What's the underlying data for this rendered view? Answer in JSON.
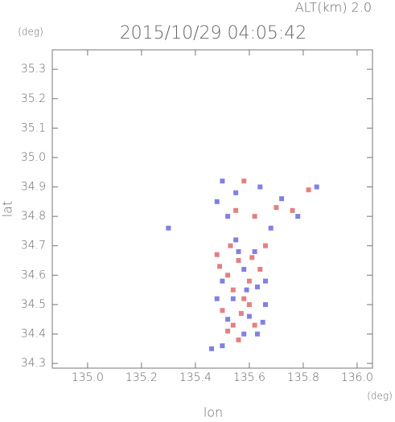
{
  "chart_data": {
    "type": "scatter",
    "title": "2015/10/29 04:05:42",
    "altitude_label": "ALT(km) 2.0",
    "x_label": "lon",
    "x_unit": "(deg)",
    "y_label": "lat",
    "y_unit": "(deg)",
    "xlim": [
      134.869,
      136.057
    ],
    "ylim": [
      34.284,
      35.366
    ],
    "xticks": [
      {
        "value": 135.0,
        "label": "135.0"
      },
      135.2,
      135.4,
      135.6,
      135.8,
      {
        "value": 136.0,
        "label": "136.0"
      }
    ],
    "yticks": [
      34.3,
      34.4,
      34.5,
      34.6,
      34.7,
      34.8,
      34.9,
      {
        "value": 35.0,
        "label": "35.0"
      },
      35.1,
      35.2,
      35.3
    ],
    "series": [
      {
        "color": "#e06a6a",
        "x": [
          135.58,
          135.62,
          135.7,
          135.76,
          135.82,
          135.55,
          135.48,
          135.52,
          135.56,
          135.6,
          135.54,
          135.58,
          135.5,
          135.54,
          135.52,
          135.56,
          135.62,
          135.6,
          135.64,
          135.66,
          135.53,
          135.57,
          135.61,
          135.49
        ],
        "values": [
          34.92,
          34.8,
          34.83,
          34.82,
          34.89,
          34.82,
          34.67,
          34.6,
          34.65,
          34.58,
          34.55,
          34.52,
          34.48,
          34.43,
          34.41,
          34.38,
          34.43,
          34.5,
          34.62,
          34.7,
          34.7,
          34.47,
          34.66,
          34.63
        ]
      },
      {
        "color": "#6a6ae0",
        "x": [
          135.5,
          135.55,
          135.64,
          135.72,
          135.78,
          135.85,
          135.48,
          135.52,
          135.68,
          135.3,
          135.55,
          135.62,
          135.58,
          135.5,
          135.63,
          135.54,
          135.66,
          135.6,
          135.65,
          135.52,
          135.58,
          135.46,
          135.5,
          135.63,
          135.56,
          135.66,
          135.59,
          135.48
        ],
        "values": [
          34.92,
          34.88,
          34.9,
          34.86,
          34.8,
          34.9,
          34.85,
          34.8,
          34.76,
          34.76,
          34.72,
          34.68,
          34.62,
          34.58,
          34.56,
          34.52,
          34.5,
          34.46,
          34.44,
          34.45,
          34.4,
          34.35,
          34.36,
          34.4,
          34.68,
          34.58,
          34.55,
          34.52
        ]
      }
    ]
  }
}
